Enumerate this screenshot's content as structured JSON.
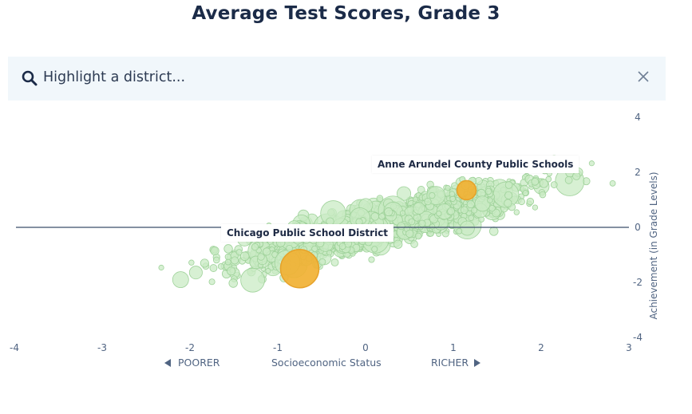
{
  "title": "Average Test Scores, Grade 3",
  "search": {
    "placeholder": "Highlight a district...",
    "icon": "search-icon",
    "close_icon": "close-icon"
  },
  "colors": {
    "bubble_fill": "#c9ebc4",
    "bubble_stroke": "#9fd29a",
    "highlight": "#f1b133",
    "highlight_stroke": "#e6a22a",
    "zero_line": "#3b4d6b",
    "axis_text": "#506482"
  },
  "chart_data": {
    "type": "scatter",
    "xlabel": "Socioeconomic Status",
    "ylabel": "Achievement (in Grade Levels)",
    "xlim": [
      -4,
      3
    ],
    "ylim": [
      -4,
      4
    ],
    "x_ticks": [
      "-4",
      "-3",
      "-2",
      "-1",
      "0",
      "1",
      "2",
      "3"
    ],
    "y_ticks": [
      "4",
      "2",
      "0",
      "-2",
      "-4"
    ],
    "poorer_label": "POORER",
    "richer_label": "RICHER",
    "reference_line_y": 0,
    "background_series": "all districts (approx. cloud)",
    "highlighted": [
      {
        "name": "Chicago Public School District",
        "x": -0.75,
        "y": -1.5
      },
      {
        "name": "Anne Arundel County Public Schools",
        "x": 1.15,
        "y": 1.35
      }
    ]
  }
}
